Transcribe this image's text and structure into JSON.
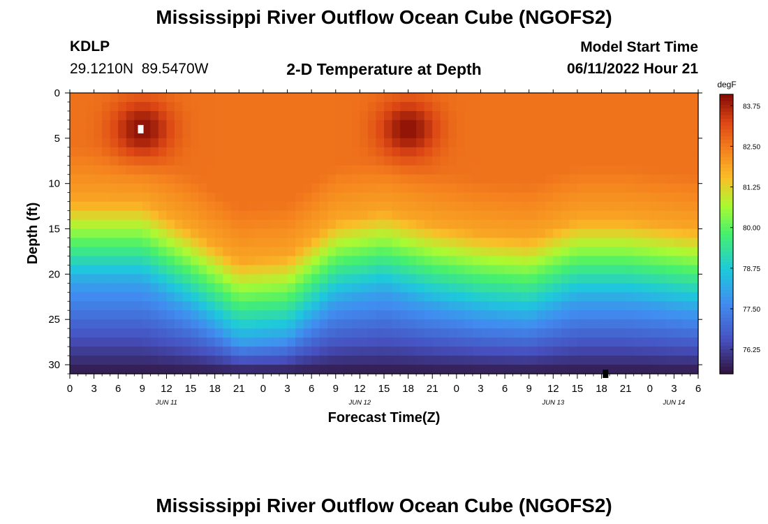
{
  "page": {
    "title": "Mississippi River Outflow Ocean Cube (NGOFS2)",
    "title_bottom": "Mississippi River Outflow Ocean Cube (NGOFS2)",
    "station": "KDLP",
    "coords": "29.1210N  89.5470W",
    "subtitle": "2-D Temperature at Depth",
    "model_label": "Model Start Time",
    "model_time": "06/11/2022 Hour 21"
  },
  "chart_data": {
    "type": "heatmap",
    "title": "2-D Temperature at Depth",
    "xlabel": "Forecast Time(Z)",
    "ylabel": "Depth (ft)",
    "units": "degF",
    "x_range_hours": [
      0,
      78
    ],
    "y_range_ft": [
      0,
      31
    ],
    "x_tick_labels": [
      "0",
      "3",
      "6",
      "9",
      "12",
      "15",
      "18",
      "21",
      "0",
      "3",
      "6",
      "9",
      "12",
      "15",
      "18",
      "21",
      "0",
      "3",
      "6",
      "9",
      "12",
      "15",
      "18",
      "21",
      "0",
      "3",
      "6"
    ],
    "y_ticks": [
      0,
      5,
      10,
      15,
      20,
      25,
      30
    ],
    "date_labels": [
      {
        "label": "JUN 11",
        "hour": 12
      },
      {
        "label": "JUN 12",
        "hour": 36
      },
      {
        "label": "JUN 13",
        "hour": 60
      },
      {
        "label": "JUN 14",
        "hour": 75
      }
    ],
    "colorbar": {
      "min": 75.5,
      "max": 84.1,
      "ticks": [
        "76.25",
        "77.50",
        "78.75",
        "80.00",
        "81.25",
        "82.50",
        "83.75"
      ]
    },
    "thermocline_ft": [
      [
        0,
        15
      ],
      [
        9,
        15
      ],
      [
        15,
        18
      ],
      [
        21,
        21.5
      ],
      [
        27,
        21
      ],
      [
        33,
        17
      ],
      [
        39,
        16
      ],
      [
        45,
        17.5
      ],
      [
        51,
        18.5
      ],
      [
        57,
        19
      ],
      [
        63,
        17
      ],
      [
        69,
        17
      ],
      [
        78,
        18
      ]
    ],
    "warm_cores": [
      {
        "hour": 9,
        "depth_ft": 4,
        "temp": 84.0
      },
      {
        "hour": 42,
        "depth_ft": 4,
        "temp": 84.0
      }
    ],
    "surface_temp": 82.6,
    "bottom_temp": 75.6,
    "markers": [
      {
        "hour": 8.8,
        "depth_ft": 4,
        "color": "#ffffff"
      },
      {
        "hour": 66.5,
        "depth_ft": 31,
        "color": "#000000"
      }
    ]
  }
}
